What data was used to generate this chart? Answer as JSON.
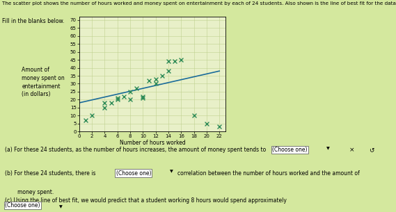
{
  "title_text": "The scatter plot shows the number of hours worked and money spent on entertainment by each of 24 students. Also shown is the line of best fit for the data",
  "fill_in_text": "Fill in the blanks below.",
  "xlabel": "Number of hours worked",
  "ylabel_lines": [
    "Amount of",
    "money spent on",
    "entertainment",
    "(in dollars)"
  ],
  "x_ticks": [
    0,
    2,
    4,
    6,
    8,
    10,
    12,
    14,
    16,
    18,
    20,
    22
  ],
  "y_ticks": [
    0,
    5,
    10,
    15,
    20,
    25,
    30,
    35,
    40,
    45,
    50,
    55,
    60,
    65,
    70
  ],
  "xlim": [
    0,
    23
  ],
  "ylim": [
    0,
    72
  ],
  "scatter_x": [
    1,
    2,
    4,
    4,
    5,
    6,
    6,
    7,
    8,
    8,
    9,
    10,
    10,
    11,
    12,
    12,
    13,
    14,
    14,
    15,
    16,
    18,
    20,
    22
  ],
  "scatter_y": [
    7,
    10,
    15,
    18,
    18,
    20,
    21,
    22,
    25,
    20,
    27,
    22,
    21,
    32,
    33,
    30,
    35,
    38,
    44,
    44,
    45,
    10,
    5,
    3
  ],
  "line_x": [
    0,
    22
  ],
  "line_y": [
    18,
    38
  ],
  "marker_color": "#2e8b57",
  "line_color": "#1a6b9a",
  "bg_color": "#d4e89e",
  "plot_bg": "#e8f0c8",
  "grid_color": "#c0d090",
  "text_color": "#000000",
  "q_box_bg": "#ffffff",
  "q_box_border": "#888888",
  "title_fontsize": 5.2,
  "fill_fontsize": 5.5,
  "axis_fontsize": 5.5,
  "tick_fontsize": 5.0,
  "q_fontsize": 5.5
}
